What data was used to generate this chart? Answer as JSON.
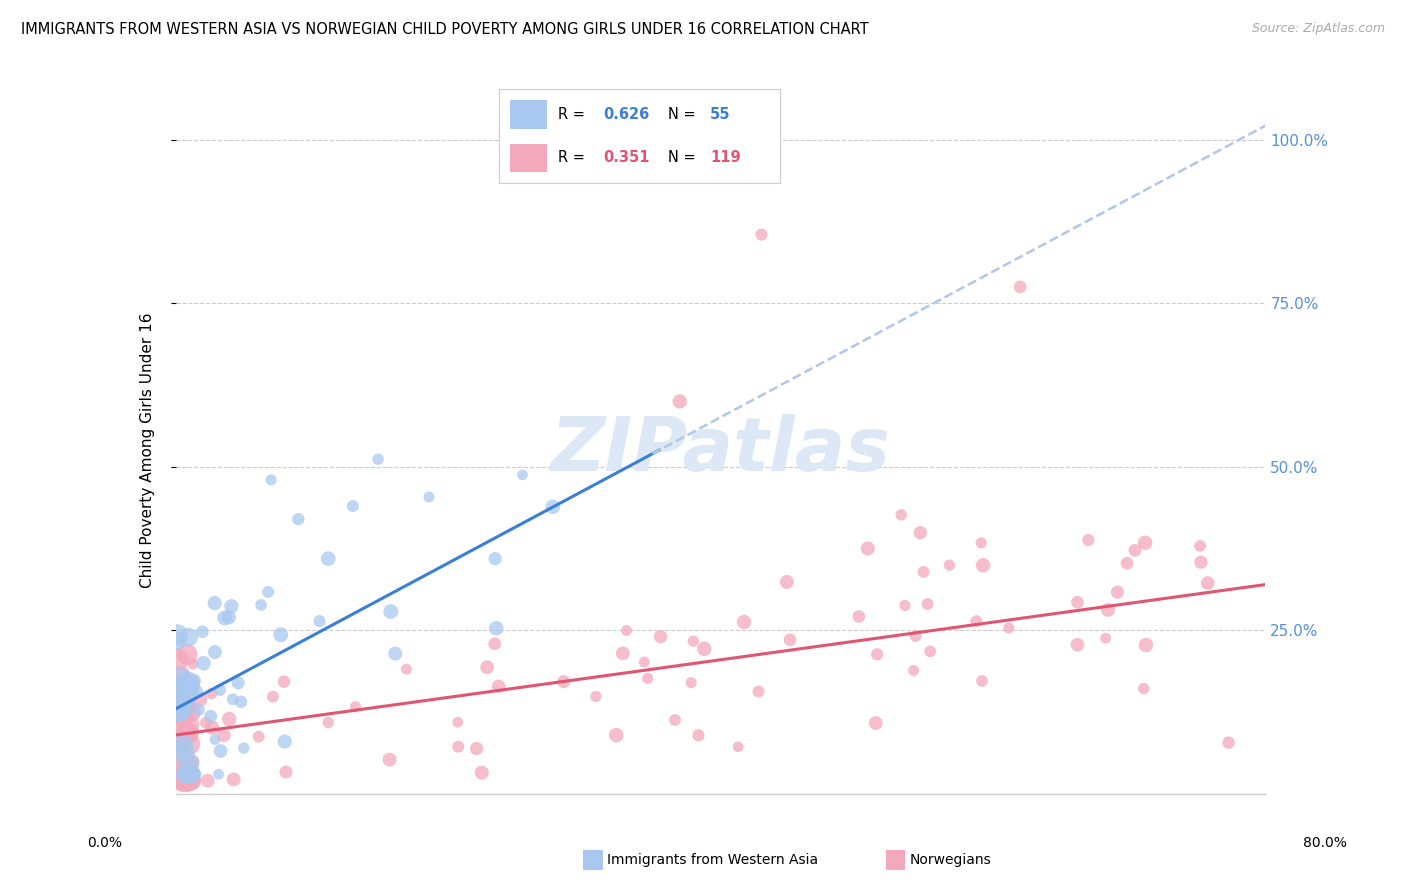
{
  "title": "IMMIGRANTS FROM WESTERN ASIA VS NORWEGIAN CHILD POVERTY AMONG GIRLS UNDER 16 CORRELATION CHART",
  "source": "Source: ZipAtlas.com",
  "ylabel": "Child Poverty Among Girls Under 16",
  "blue_color": "#a8c8f0",
  "pink_color": "#f4a8bc",
  "blue_line_color": "#3a7fd5",
  "pink_line_color": "#e05570",
  "dash_color": "#b0c8e8",
  "watermark_color": "#dce8f5",
  "blue_r": "0.626",
  "blue_n": "55",
  "pink_r": "0.351",
  "pink_n": "119",
  "xlim": [
    0.0,
    0.8
  ],
  "ylim": [
    0.0,
    1.05
  ],
  "yticks": [
    0.25,
    0.5,
    0.75,
    1.0
  ],
  "ytick_labels": [
    "25.0%",
    "50.0%",
    "75.0%",
    "100.0%"
  ],
  "blue_trend_x0": 0.0,
  "blue_trend_y0": 0.13,
  "blue_trend_x1": 0.35,
  "blue_trend_y1": 0.52,
  "pink_trend_x0": 0.0,
  "pink_trend_y0": 0.09,
  "pink_trend_x1": 0.8,
  "pink_trend_y1": 0.32
}
